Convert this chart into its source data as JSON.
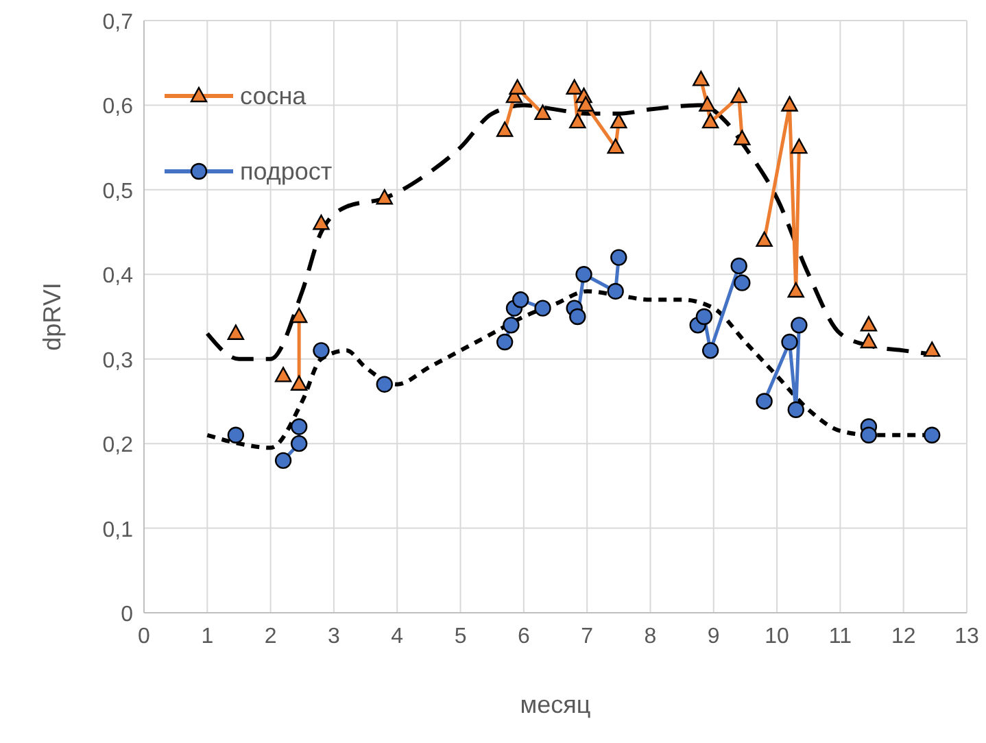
{
  "chart_data": {
    "type": "line",
    "xlabel": "месяц",
    "ylabel": "dpRVI",
    "xlim": [
      0,
      13
    ],
    "xticks": [
      0,
      1,
      2,
      3,
      4,
      5,
      6,
      7,
      8,
      9,
      10,
      11,
      12,
      13
    ],
    "ylim": [
      0,
      0.7
    ],
    "yticks": [
      0,
      {
        "value": 0.1,
        "label": "0,1"
      },
      {
        "value": 0.2,
        "label": "0,2"
      },
      {
        "value": 0.3,
        "label": "0,3"
      },
      {
        "value": 0.4,
        "label": "0,4"
      },
      {
        "value": 0.5,
        "label": "0,5"
      },
      {
        "value": 0.6,
        "label": "0,6"
      },
      {
        "value": 0.7,
        "label": "0,7"
      }
    ],
    "grid": true,
    "legend": "top left",
    "series": [
      {
        "color": "#000000",
        "marker": "none",
        "line_style": "dashed",
        "x": [
          1,
          1.5,
          2,
          2.5,
          2.8,
          3.2,
          3.8,
          4.5,
          5,
          5.5,
          6,
          6.5,
          7,
          7.5,
          8,
          8.8,
          9.2,
          9.5,
          10,
          10.5,
          11,
          11.5,
          12,
          12.5
        ],
        "values": [
          0.33,
          0.3,
          0.3,
          0.38,
          0.45,
          0.48,
          0.49,
          0.52,
          0.55,
          0.59,
          0.6,
          0.595,
          0.59,
          0.59,
          0.595,
          0.6,
          0.58,
          0.55,
          0.49,
          0.4,
          0.33,
          0.315,
          0.31,
          0.305
        ]
      },
      {
        "color": "#000000",
        "marker": "none",
        "line_style": "dotted",
        "x": [
          1,
          1.5,
          2,
          2.5,
          2.8,
          3.2,
          3.5,
          4,
          4.5,
          5,
          5.5,
          6,
          6.5,
          7,
          7.5,
          8,
          8.5,
          9,
          9.5,
          10,
          10.5,
          11,
          11.5,
          12,
          12.5
        ],
        "values": [
          0.21,
          0.2,
          0.195,
          0.25,
          0.3,
          0.31,
          0.29,
          0.27,
          0.29,
          0.31,
          0.33,
          0.35,
          0.365,
          0.38,
          0.375,
          0.37,
          0.37,
          0.36,
          0.32,
          0.28,
          0.24,
          0.215,
          0.21,
          0.21,
          0.21
        ]
      },
      {
        "name": "сосна",
        "color": "#ed7d31",
        "marker": "triangle",
        "x": [
          2.45,
          2.45,
          null,
          5.7,
          5.85,
          5.9,
          6.3,
          null,
          6.8,
          6.85,
          6.95,
          6.98,
          7.45,
          7.5,
          null,
          8.8,
          8.9,
          8.95,
          9.4,
          9.45,
          null,
          9.8,
          10.2,
          10.3,
          10.35
        ],
        "values": [
          0.35,
          0.27,
          null,
          0.57,
          0.61,
          0.62,
          0.59,
          null,
          0.62,
          0.58,
          0.61,
          0.6,
          0.55,
          0.58,
          null,
          0.63,
          0.6,
          0.58,
          0.61,
          0.56,
          null,
          0.44,
          0.6,
          0.38,
          0.55
        ]
      },
      {
        "type": "scatter",
        "color": "#ed7d31",
        "marker": "triangle",
        "x": [
          1.45,
          2.2,
          2.8,
          3.8,
          11.45,
          11.45,
          12.45
        ],
        "values": [
          0.33,
          0.28,
          0.46,
          0.49,
          0.34,
          0.32,
          0.31
        ]
      },
      {
        "name": "подрост",
        "color": "#4472c4",
        "marker": "circle",
        "x": [
          2.2,
          2.45,
          2.45,
          null,
          5.7,
          5.8,
          5.85,
          5.95,
          6.3,
          null,
          6.8,
          6.85,
          6.95,
          7.45,
          7.5,
          null,
          8.75,
          8.85,
          8.95,
          9.4,
          9.45,
          null,
          9.8,
          10.2,
          10.3,
          10.35
        ],
        "values": [
          0.18,
          0.2,
          0.22,
          null,
          0.32,
          0.34,
          0.36,
          0.37,
          0.36,
          null,
          0.36,
          0.35,
          0.4,
          0.38,
          0.42,
          null,
          0.34,
          0.35,
          0.31,
          0.41,
          0.39,
          null,
          0.25,
          0.32,
          0.24,
          0.34
        ]
      },
      {
        "type": "scatter",
        "color": "#4472c4",
        "marker": "circle",
        "x": [
          1.45,
          2.8,
          3.8,
          11.45,
          11.45,
          12.45
        ],
        "values": [
          0.21,
          0.31,
          0.27,
          0.22,
          0.21,
          0.21
        ]
      }
    ]
  }
}
